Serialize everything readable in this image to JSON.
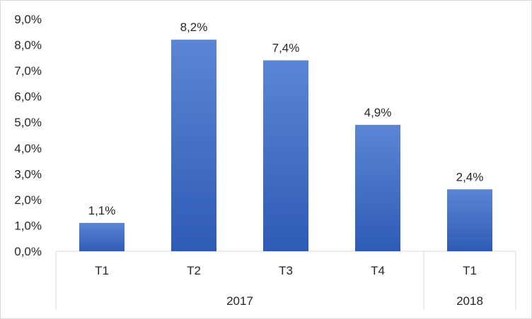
{
  "chart_data": {
    "type": "bar",
    "title": "",
    "xlabel": "",
    "ylabel": "",
    "ylim": [
      0,
      9
    ],
    "y_ticks": [
      "0,0%",
      "1,0%",
      "2,0%",
      "3,0%",
      "4,0%",
      "5,0%",
      "6,0%",
      "7,0%",
      "8,0%",
      "9,0%"
    ],
    "grid": false,
    "legend": "none",
    "bar_color": "#4472c4",
    "categories": [
      "T1",
      "T2",
      "T3",
      "T4",
      "T1"
    ],
    "groups": [
      {
        "label": "2017",
        "count": 4
      },
      {
        "label": "2018",
        "count": 1
      }
    ],
    "values": [
      1.1,
      8.2,
      7.4,
      4.9,
      2.4
    ],
    "data_labels": [
      "1,1%",
      "8,2%",
      "7,4%",
      "4,9%",
      "2,4%"
    ]
  }
}
